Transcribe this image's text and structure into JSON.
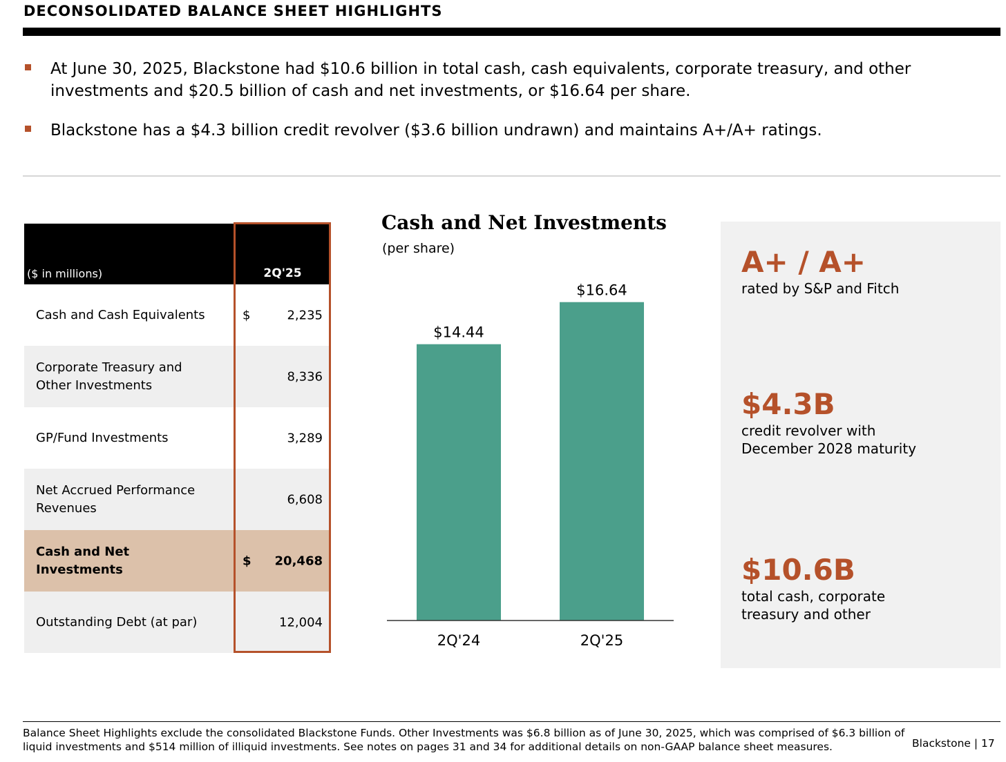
{
  "header": {
    "title": "DECONSOLIDATED BALANCE SHEET HIGHLIGHTS"
  },
  "bullets": [
    "At June 30, 2025, Blackstone had $10.6 billion in total cash, cash equivalents, corporate treasury, and other investments and $20.5 billion of cash and net investments, or $16.64 per share.",
    "Blackstone has a $4.3 billion credit revolver ($3.6 billion undrawn) and maintains A+/A+ ratings."
  ],
  "table": {
    "units_label": "($ in millions)",
    "column_header": "2Q'25",
    "rows": [
      {
        "label": "Cash and Cash Equivalents",
        "dollar": "$",
        "value": "2,235"
      },
      {
        "label": "Corporate Treasury and Other Investments",
        "dollar": "",
        "value": "8,336"
      },
      {
        "label": "GP/Fund Investments",
        "dollar": "",
        "value": "3,289"
      },
      {
        "label": "Net Accrued Performance Revenues",
        "dollar": "",
        "value": "6,608"
      },
      {
        "label": "Cash and Net Investments",
        "dollar": "$",
        "value": "20,468"
      },
      {
        "label": "Outstanding Debt (at par)",
        "dollar": "",
        "value": "12,004"
      }
    ]
  },
  "chart_data": {
    "type": "bar",
    "title": "Cash and Net Investments",
    "subtitle": "(per share)",
    "categories": [
      "2Q'24",
      "2Q'25"
    ],
    "values": [
      14.44,
      16.64
    ],
    "data_labels": [
      "$14.44",
      "$16.64"
    ],
    "ylim": [
      0,
      18
    ],
    "bar_color": "#4b9f8b",
    "grid": false
  },
  "stats": [
    {
      "big": "A+ / A+",
      "desc": [
        "rated by S&P and Fitch"
      ]
    },
    {
      "big": "$4.3B",
      "desc": [
        "credit revolver with",
        "December 2028 maturity"
      ]
    },
    {
      "big": "$10.6B",
      "desc": [
        "total cash, corporate",
        "treasury and other"
      ]
    }
  ],
  "footer": {
    "note": "Balance Sheet Highlights exclude the consolidated Blackstone Funds. Other Investments was $6.8 billion as of June 30, 2025, which was comprised of $6.3 billion of liquid investments and $514 million of illiquid investments. See notes on pages 31 and 34 for additional details on non-GAAP balance sheet measures.",
    "brand": "Blackstone",
    "page": "17"
  },
  "colors": {
    "accent": "#b5512a",
    "highlight_row": "#dcc1aa",
    "panel_bg": "#f1f1f1"
  }
}
